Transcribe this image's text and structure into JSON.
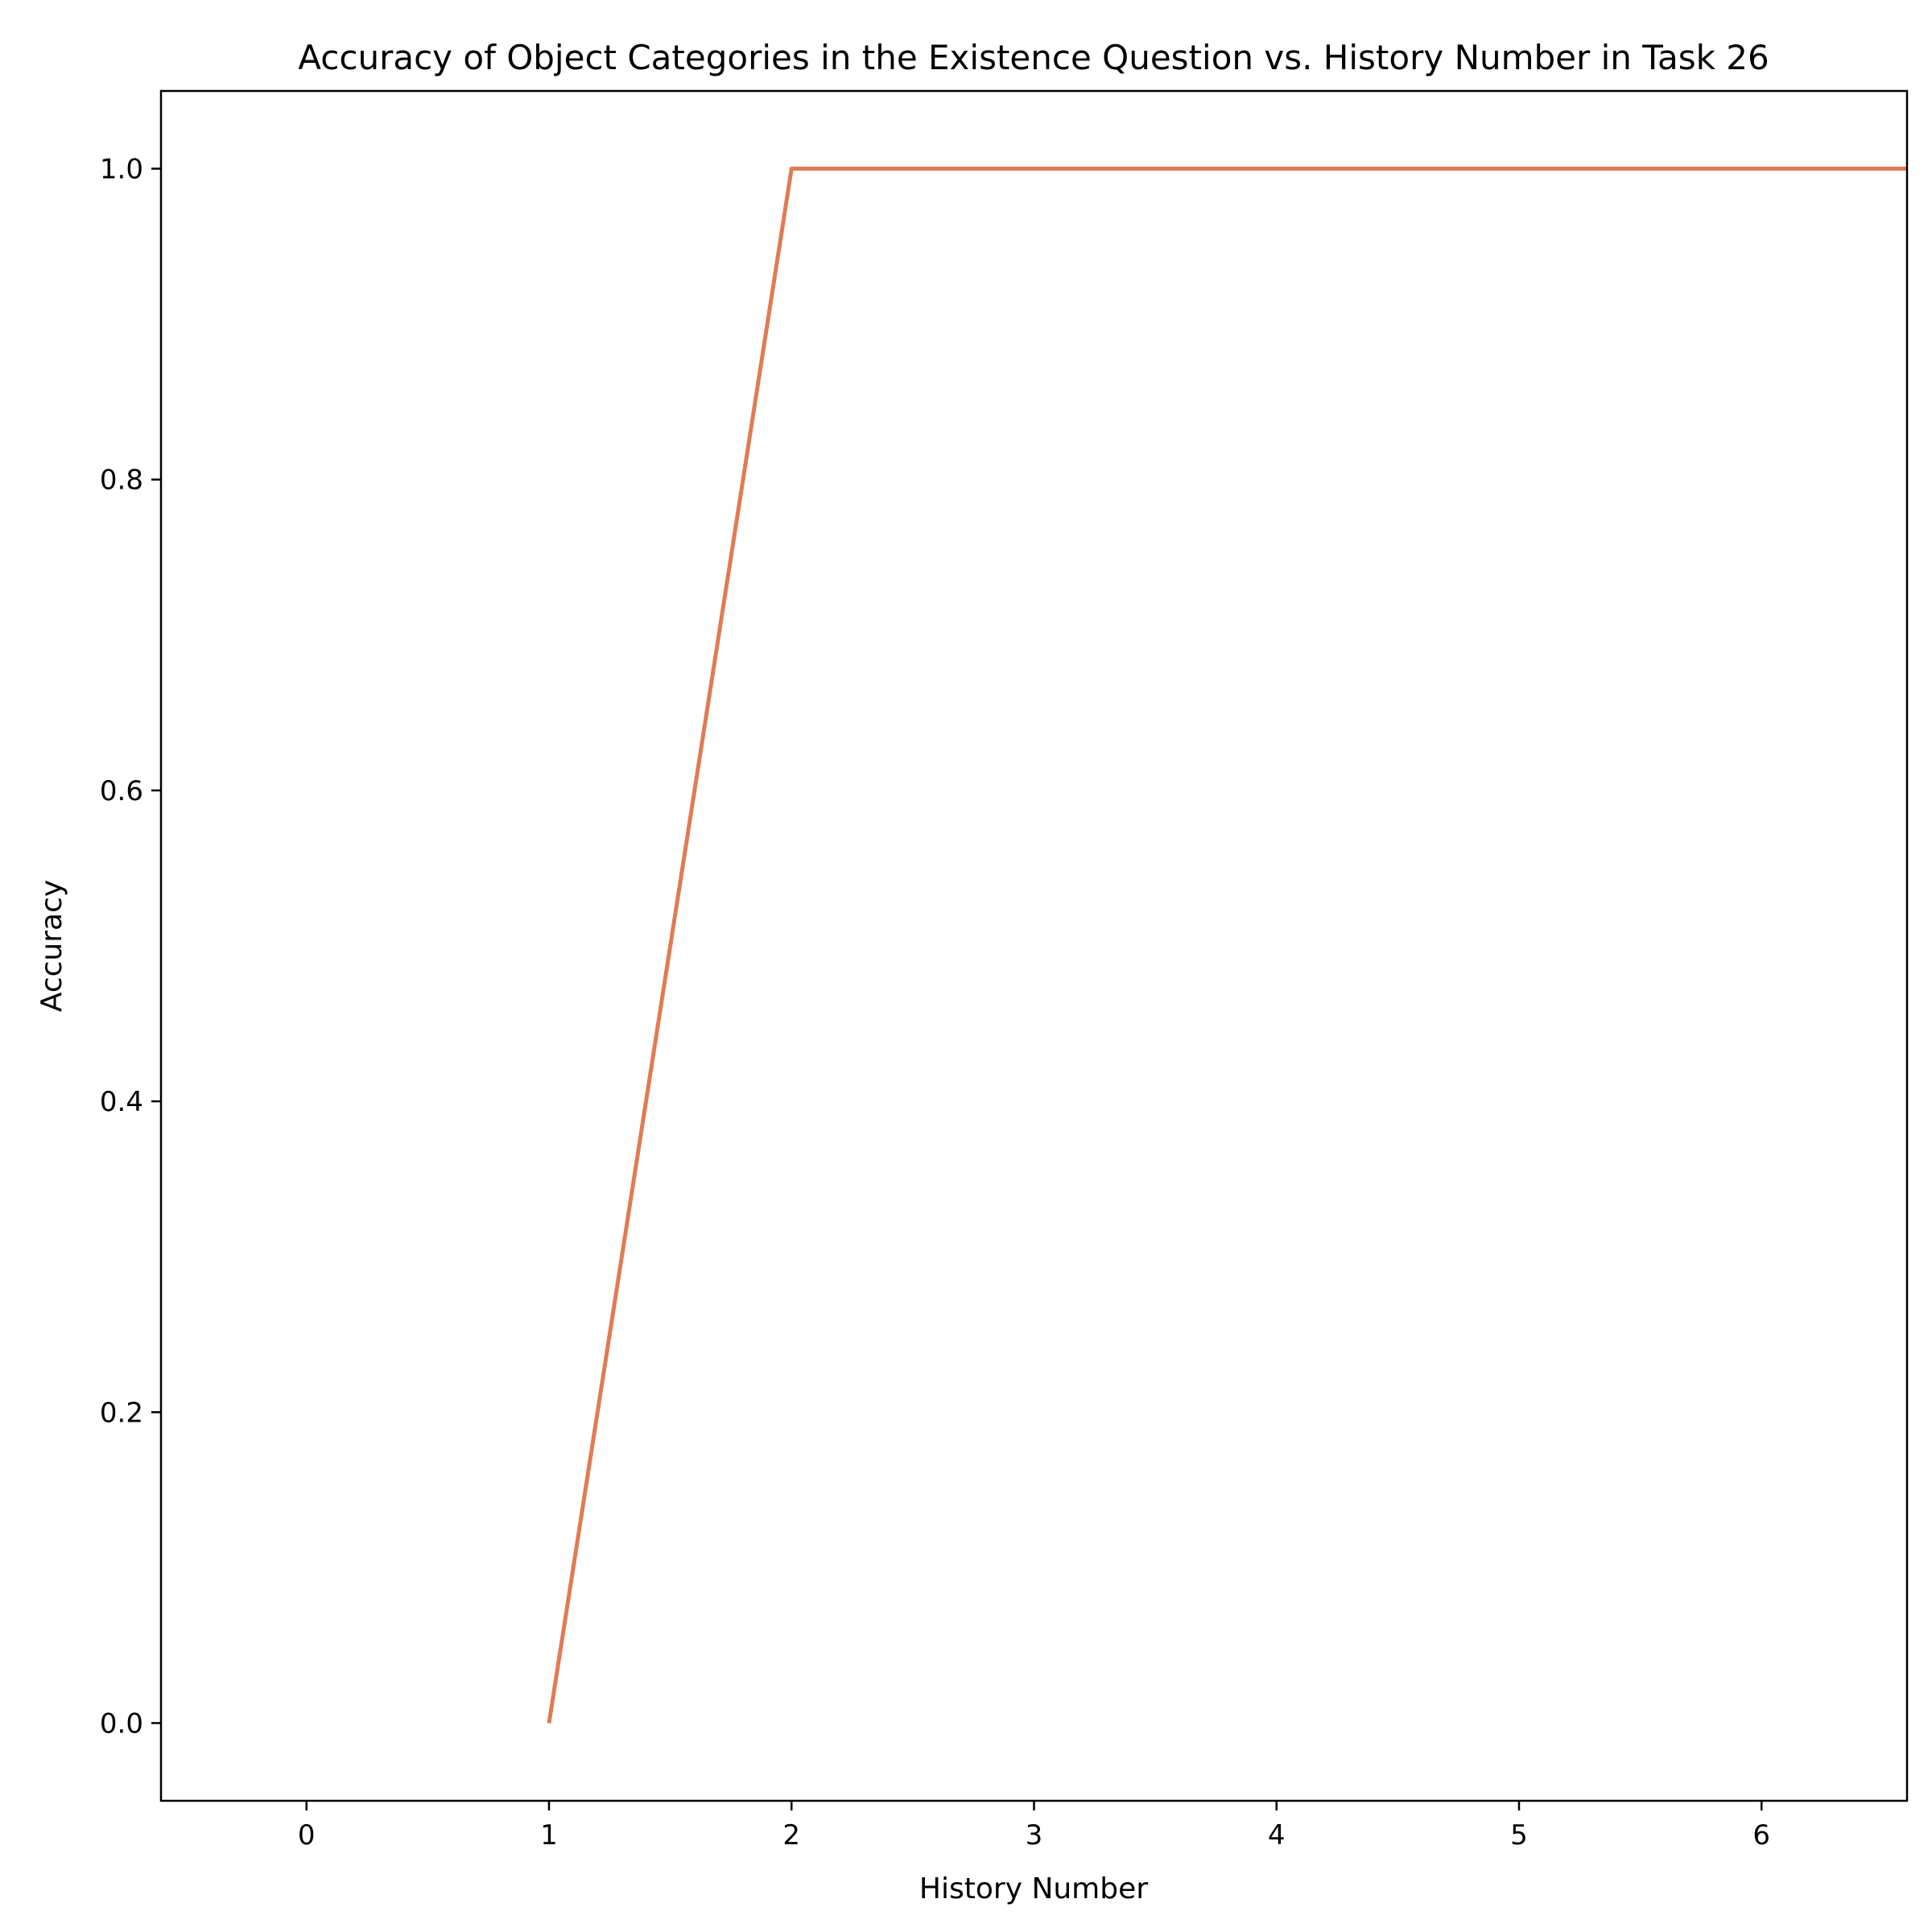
{
  "chart_data": {
    "type": "line",
    "title": "Accuracy of Object Categories in the Existence Question vs. History Number in Task 26",
    "xlabel": "History Number",
    "ylabel": "Accuracy",
    "xlim": [
      -0.6,
      6.6
    ],
    "ylim": [
      -0.05,
      1.05
    ],
    "xticks": [
      0,
      1,
      2,
      3,
      4,
      5,
      6
    ],
    "yticks": [
      0.0,
      0.2,
      0.4,
      0.6,
      0.8,
      1.0
    ],
    "xtick_labels": [
      "0",
      "1",
      "2",
      "3",
      "4",
      "5",
      "6"
    ],
    "ytick_labels": [
      "0.0",
      "0.2",
      "0.4",
      "0.6",
      "0.8",
      "1.0"
    ],
    "grid": false,
    "series": [
      {
        "color": "#e07b54",
        "x": [
          1,
          2,
          3,
          4,
          5,
          6,
          7
        ],
        "y": [
          0.0,
          1.0,
          1.0,
          1.0,
          1.0,
          1.0,
          1.0
        ]
      }
    ]
  }
}
